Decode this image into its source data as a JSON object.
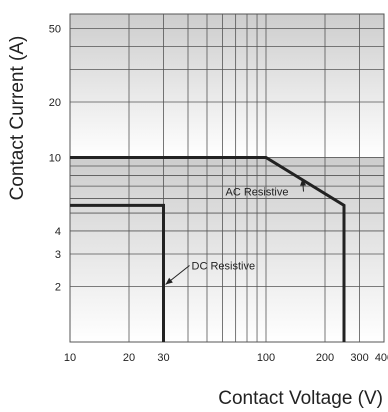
{
  "chart_data": {
    "type": "line",
    "xlabel": "Contact Voltage (V)",
    "ylabel": "Contact Current (A)",
    "x_scale": "log",
    "y_scale": "log",
    "xlim": [
      10,
      400
    ],
    "ylim": [
      1,
      60
    ],
    "grid": true,
    "x_ticks": [
      10,
      20,
      30,
      100,
      200,
      300,
      400
    ],
    "x_tick_labels": [
      "10",
      "20",
      "30",
      "100",
      "200",
      "300",
      "400"
    ],
    "y_ticks": [
      2,
      3,
      4,
      10,
      20,
      50
    ],
    "y_tick_labels": [
      "2",
      "3",
      "4",
      "10",
      "20",
      "50"
    ],
    "series": [
      {
        "name": "AC Resistive",
        "x": [
          10,
          100,
          250,
          250
        ],
        "y": [
          10,
          10,
          5.5,
          1
        ]
      },
      {
        "name": "DC Resistive",
        "x": [
          10,
          30,
          30
        ],
        "y": [
          5.5,
          5.5,
          1
        ]
      }
    ],
    "annotations": [
      {
        "text": "AC Resistive",
        "x": 150,
        "y": 7.5
      },
      {
        "text": "DC Resistive",
        "x": 30,
        "y": 2
      }
    ],
    "colors": {
      "line": "#222222",
      "grid": "#555555",
      "frame": "#555555"
    }
  }
}
